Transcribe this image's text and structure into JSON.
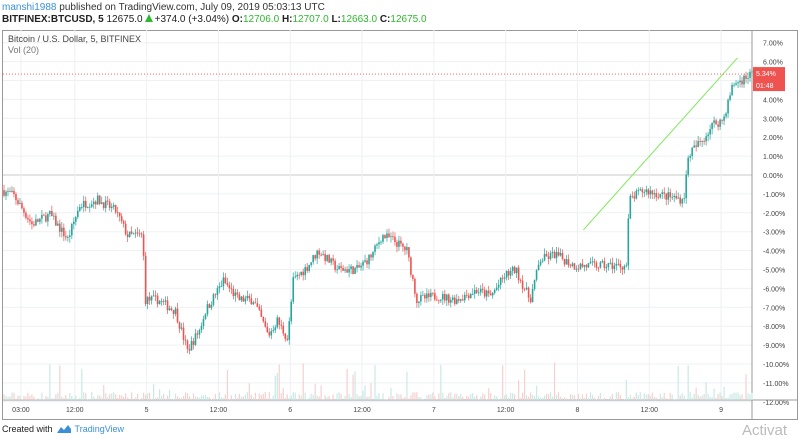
{
  "header": {
    "user": "manshi1988",
    "published": "published on TradingView.com, July 09, 2019 05:03:13 UTC",
    "symbol": "BITFINEX:BTCUSD, 5",
    "price": "12675.0",
    "change": "+374.0 (+3.04%)",
    "o_label": "O:",
    "o": "12706.0",
    "h_label": "H:",
    "h": "12707.0",
    "l_label": "L:",
    "l": "12663.0",
    "c_label": "C:",
    "c": "12675.0"
  },
  "legend": {
    "title": "Bitcoin / U.S. Dollar, 5, BITFINEX",
    "volume": "Vol (20)"
  },
  "footer": {
    "created": "Created with",
    "brand": "TradingView",
    "watermark": "Activat"
  },
  "colors": {
    "up": "#26a69a",
    "down": "#ef5350",
    "trendline": "#7ee85a",
    "price_line": "#ef5350"
  },
  "chart_data": {
    "type": "candlestick",
    "y_scale": "percent",
    "ylim": [
      -12,
      7
    ],
    "y_ticks": [
      "7.00%",
      "6.00%",
      "5.00%",
      "4.00%",
      "3.00%",
      "2.00%",
      "1.00%",
      "0.00%",
      "-1.00%",
      "-2.00%",
      "-3.00%",
      "-4.00%",
      "-5.00%",
      "-6.00%",
      "-7.00%",
      "-8.00%",
      "-9.00%",
      "-10.00%",
      "-11.00%",
      "-12.00%"
    ],
    "y_tick_values": [
      7,
      6,
      5,
      4,
      3,
      2,
      1,
      0,
      -1,
      -2,
      -3,
      -4,
      -5,
      -6,
      -7,
      -8,
      -9,
      -10,
      -11,
      -12
    ],
    "x_ticks": [
      {
        "t": "2019-07-04T03:00",
        "label": "03:00"
      },
      {
        "t": "2019-07-04T12:00",
        "label": "12:00"
      },
      {
        "t": "2019-07-05T00:00",
        "label": "5"
      },
      {
        "t": "2019-07-05T12:00",
        "label": "12:00"
      },
      {
        "t": "2019-07-06T00:00",
        "label": "6"
      },
      {
        "t": "2019-07-06T12:00",
        "label": "12:00"
      },
      {
        "t": "2019-07-07T00:00",
        "label": "7"
      },
      {
        "t": "2019-07-07T12:00",
        "label": "12:00"
      },
      {
        "t": "2019-07-08T00:00",
        "label": "8"
      },
      {
        "t": "2019-07-08T12:00",
        "label": "12:00"
      },
      {
        "t": "2019-07-09T00:00",
        "label": "9"
      }
    ],
    "xlim": [
      "2019-07-04T00:00",
      "2019-07-09T05:10"
    ],
    "path": [
      [
        "2019-07-04T00:00",
        -0.8
      ],
      [
        "2019-07-04T02:00",
        -1.1
      ],
      [
        "2019-07-04T05:00",
        -2.6
      ],
      [
        "2019-07-04T08:00",
        -2.1
      ],
      [
        "2019-07-04T11:00",
        -3.4
      ],
      [
        "2019-07-04T13:00",
        -1.6
      ],
      [
        "2019-07-04T16:00",
        -1.3
      ],
      [
        "2019-07-04T19:00",
        -1.9
      ],
      [
        "2019-07-04T21:00",
        -3.2
      ],
      [
        "2019-07-04T23:30",
        -3.2
      ],
      [
        "2019-07-05T00:00",
        -6.6
      ],
      [
        "2019-07-05T02:00",
        -6.6
      ],
      [
        "2019-07-05T05:00",
        -7.2
      ],
      [
        "2019-07-05T07:00",
        -9.3
      ],
      [
        "2019-07-05T09:00",
        -8.2
      ],
      [
        "2019-07-05T10:00",
        -7.2
      ],
      [
        "2019-07-05T11:30",
        -6.4
      ],
      [
        "2019-07-05T13:00",
        -5.6
      ],
      [
        "2019-07-05T15:30",
        -6.6
      ],
      [
        "2019-07-05T18:00",
        -6.6
      ],
      [
        "2019-07-05T20:30",
        -8.5
      ],
      [
        "2019-07-05T22:00",
        -7.7
      ],
      [
        "2019-07-05T23:45",
        -8.7
      ],
      [
        "2019-07-06T00:40",
        -5.6
      ],
      [
        "2019-07-06T03:10",
        -4.8
      ],
      [
        "2019-07-06T04:50",
        -4.0
      ],
      [
        "2019-07-06T08:10",
        -5.0
      ],
      [
        "2019-07-06T11:25",
        -5.0
      ],
      [
        "2019-07-06T13:55",
        -4.2
      ],
      [
        "2019-07-06T15:30",
        -3.2
      ],
      [
        "2019-07-06T17:10",
        -3.4
      ],
      [
        "2019-07-06T19:40",
        -4.0
      ],
      [
        "2019-07-06T21:20",
        -6.6
      ],
      [
        "2019-07-07T00:35",
        -6.4
      ],
      [
        "2019-07-07T03:55",
        -6.6
      ],
      [
        "2019-07-07T07:15",
        -6.1
      ],
      [
        "2019-07-07T09:40",
        -6.4
      ],
      [
        "2019-07-07T12:10",
        -5.3
      ],
      [
        "2019-07-07T13:50",
        -5.0
      ],
      [
        "2019-07-07T16:15",
        -6.6
      ],
      [
        "2019-07-07T17:55",
        -4.5
      ],
      [
        "2019-07-07T20:25",
        -4.2
      ],
      [
        "2019-07-07T23:40",
        -4.8
      ],
      [
        "2019-07-08T03:00",
        -4.8
      ],
      [
        "2019-07-08T06:20",
        -4.8
      ],
      [
        "2019-07-08T08:20",
        -4.8
      ],
      [
        "2019-07-08T08:50",
        -1.3
      ],
      [
        "2019-07-08T11:15",
        -0.8
      ],
      [
        "2019-07-08T14:40",
        -1.1
      ],
      [
        "2019-07-08T17:55",
        -1.3
      ],
      [
        "2019-07-08T18:45",
        1.1
      ],
      [
        "2019-07-08T21:10",
        1.9
      ],
      [
        "2019-07-08T22:50",
        2.7
      ],
      [
        "2019-07-09T00:30",
        2.9
      ],
      [
        "2019-07-09T02:10",
        4.8
      ],
      [
        "2019-07-09T03:30",
        5.0
      ],
      [
        "2019-07-09T05:03",
        5.34
      ]
    ],
    "trendline": [
      [
        "2019-07-08T01:00",
        -2.9
      ],
      [
        "2019-07-09T02:45",
        6.2
      ]
    ],
    "last_value": {
      "value": 5.34,
      "label": "5.34%",
      "countdown": "01:48"
    }
  }
}
